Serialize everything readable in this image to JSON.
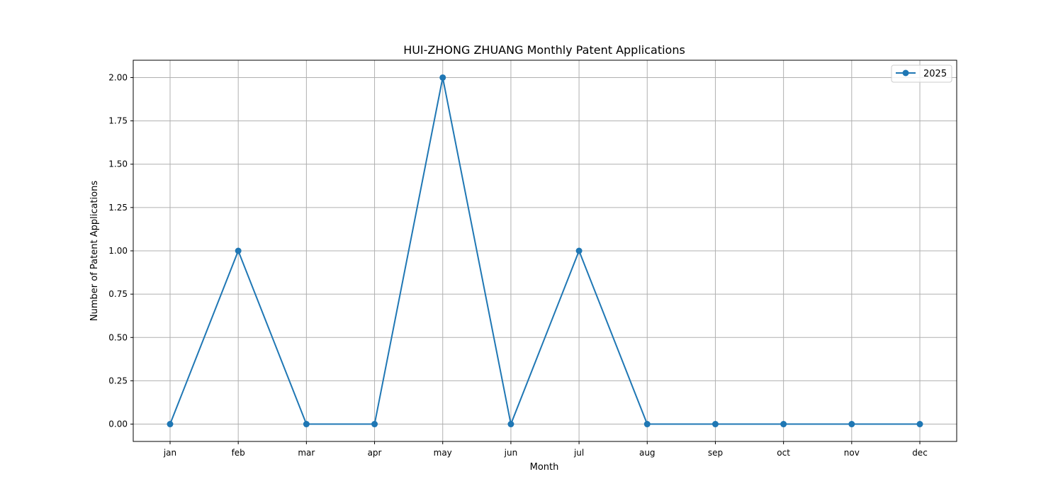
{
  "chart_data": {
    "type": "line",
    "title": "HUI-ZHONG ZHUANG Monthly Patent Applications",
    "xlabel": "Month",
    "ylabel": "Number of Patent Applications",
    "categories": [
      "jan",
      "feb",
      "mar",
      "apr",
      "may",
      "jun",
      "jul",
      "aug",
      "sep",
      "oct",
      "nov",
      "dec"
    ],
    "series": [
      {
        "name": "2025",
        "values": [
          0,
          1,
          0,
          0,
          2,
          0,
          1,
          0,
          0,
          0,
          0,
          0
        ],
        "color": "#1f77b4",
        "marker": "circle"
      }
    ],
    "ylim": [
      -0.1,
      2.1
    ],
    "yticks": [
      "0.00",
      "0.25",
      "0.50",
      "0.75",
      "1.00",
      "1.25",
      "1.50",
      "1.75",
      "2.00"
    ],
    "grid": true,
    "legend": "top-right"
  }
}
